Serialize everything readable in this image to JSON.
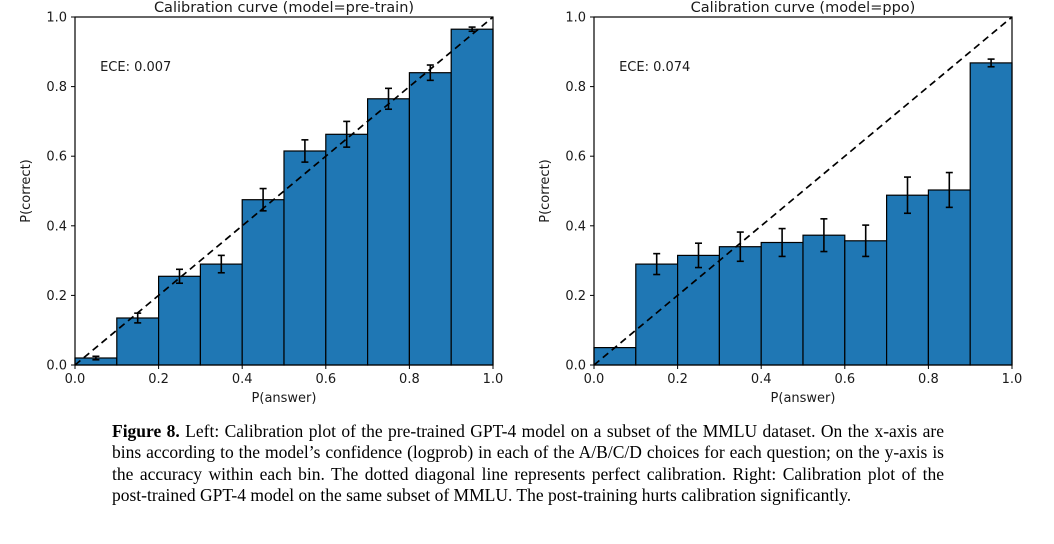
{
  "figure": {
    "caption_label": "Figure 8.",
    "caption_text": " Left: Calibration plot of the pre-trained GPT-4 model on a subset of the MMLU dataset. On the x-axis are bins according to the model’s confidence (logprob) in each of the A/B/C/D choices for each question; on the y-axis is the accuracy within each bin. The dotted diagonal line represents perfect calibration. Right: Calibration plot of the post-trained GPT-4 model on the same subset of MMLU. The post-training hurts calibration significantly."
  },
  "chart_data": [
    {
      "type": "bar",
      "title": "Calibration curve (model=pre-train)",
      "annotation": "ECE: 0.007",
      "annotation_xy": [
        0.06,
        0.845
      ],
      "xlabel": "P(answer)",
      "ylabel": "P(correct)",
      "xlim": [
        0.0,
        1.0
      ],
      "ylim": [
        0.0,
        1.0
      ],
      "xticks": [
        0.0,
        0.2,
        0.4,
        0.6,
        0.8,
        1.0
      ],
      "yticks": [
        0.0,
        0.2,
        0.4,
        0.6,
        0.8,
        1.0
      ],
      "grid": false,
      "legend": "none",
      "diagonal_reference_line": true,
      "bin_edges": [
        0.0,
        0.1,
        0.2,
        0.3,
        0.4,
        0.5,
        0.6,
        0.7,
        0.8,
        0.9,
        1.0
      ],
      "values": [
        0.02,
        0.135,
        0.255,
        0.29,
        0.475,
        0.615,
        0.663,
        0.765,
        0.84,
        0.965
      ],
      "errors": [
        0.005,
        0.014,
        0.02,
        0.025,
        0.032,
        0.032,
        0.037,
        0.03,
        0.022,
        0.006
      ],
      "bar_color": "#1f77b4",
      "bar_edge_color": "#000000"
    },
    {
      "type": "bar",
      "title": "Calibration curve (model=ppo)",
      "annotation": "ECE: 0.074",
      "annotation_xy": [
        0.06,
        0.845
      ],
      "xlabel": "P(answer)",
      "ylabel": "P(correct)",
      "xlim": [
        0.0,
        1.0
      ],
      "ylim": [
        0.0,
        1.0
      ],
      "xticks": [
        0.0,
        0.2,
        0.4,
        0.6,
        0.8,
        1.0
      ],
      "yticks": [
        0.0,
        0.2,
        0.4,
        0.6,
        0.8,
        1.0
      ],
      "grid": false,
      "legend": "none",
      "diagonal_reference_line": true,
      "bin_edges": [
        0.0,
        0.1,
        0.2,
        0.3,
        0.4,
        0.5,
        0.6,
        0.7,
        0.8,
        0.9,
        1.0
      ],
      "values": [
        0.05,
        0.29,
        0.315,
        0.34,
        0.352,
        0.373,
        0.357,
        0.488,
        0.503,
        0.868
      ],
      "errors": [
        0,
        0.03,
        0.035,
        0.042,
        0.04,
        0.047,
        0.045,
        0.052,
        0.05,
        0.011
      ],
      "bar_color": "#1f77b4",
      "bar_edge_color": "#000000"
    }
  ]
}
